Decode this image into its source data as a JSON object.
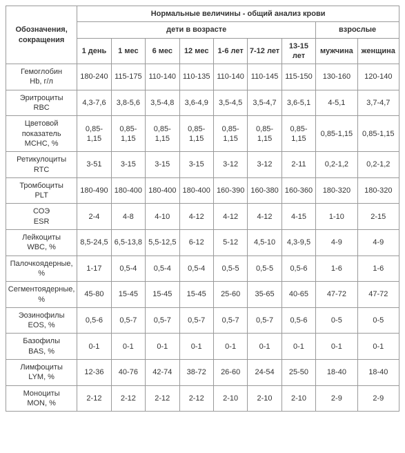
{
  "header": {
    "rowLabelHeader": "Обозначения, сокращения",
    "main": "Нормальные величины - общий анализ крови",
    "children": "дети в возрасте",
    "adults": "взрослые",
    "childCols": [
      "1 день",
      "1 мес",
      "6 мес",
      "12 мес",
      "1-6 лет",
      "7-12 лет",
      "13-15 лет"
    ],
    "adultCols": [
      "мужчина",
      "женщина"
    ]
  },
  "rows": [
    {
      "label": "Гемоглобин<br>Hb, г/л",
      "v": [
        "180-240",
        "115-175",
        "110-140",
        "110-135",
        "110-140",
        "110-145",
        "115-150",
        "130-160",
        "120-140"
      ]
    },
    {
      "label": "Эритроциты<br>RBC",
      "v": [
        "4,3-7,6",
        "3,8-5,6",
        "3,5-4,8",
        "3,6-4,9",
        "3,5-4,5",
        "3,5-4,7",
        "3,6-5,1",
        "4-5,1",
        "3,7-4,7"
      ]
    },
    {
      "label": "Цветовой показатель<br>MCHC, %",
      "v": [
        "0,85-1,15",
        "0,85-1,15",
        "0,85-1,15",
        "0,85-1,15",
        "0,85-1,15",
        "0,85-1,15",
        "0,85-1,15",
        "0,85-1,15",
        "0,85-1,15"
      ]
    },
    {
      "label": "Ретикулоциты<br>RTC",
      "v": [
        "3-51",
        "3-15",
        "3-15",
        "3-15",
        "3-12",
        "3-12",
        "2-11",
        "0,2-1,2",
        "0,2-1,2"
      ]
    },
    {
      "label": "Тромбоциты<br>PLT",
      "v": [
        "180-490",
        "180-400",
        "180-400",
        "180-400",
        "160-390",
        "160-380",
        "160-360",
        "180-320",
        "180-320"
      ]
    },
    {
      "label": "СОЭ<br>ESR",
      "v": [
        "2-4",
        "4-8",
        "4-10",
        "4-12",
        "4-12",
        "4-12",
        "4-15",
        "1-10",
        "2-15"
      ]
    },
    {
      "label": "Лейкоциты<br>WBC, %",
      "v": [
        "8,5-24,5",
        "6,5-13,8",
        "5,5-12,5",
        "6-12",
        "5-12",
        "4,5-10",
        "4,3-9,5",
        "4-9",
        "4-9"
      ]
    },
    {
      "label": "Палочкоядерные, %",
      "v": [
        "1-17",
        "0,5-4",
        "0,5-4",
        "0,5-4",
        "0,5-5",
        "0,5-5",
        "0,5-6",
        "1-6",
        "1-6"
      ]
    },
    {
      "label": "Сегментоядерные, %",
      "v": [
        "45-80",
        "15-45",
        "15-45",
        "15-45",
        "25-60",
        "35-65",
        "40-65",
        "47-72",
        "47-72"
      ]
    },
    {
      "label": "Эозинофилы<br>EOS, %",
      "v": [
        "0,5-6",
        "0,5-7",
        "0,5-7",
        "0,5-7",
        "0,5-7",
        "0,5-7",
        "0,5-6",
        "0-5",
        "0-5"
      ]
    },
    {
      "label": "Базофилы<br>BAS, %",
      "v": [
        "0-1",
        "0-1",
        "0-1",
        "0-1",
        "0-1",
        "0-1",
        "0-1",
        "0-1",
        "0-1"
      ]
    },
    {
      "label": "Лимфоциты<br>LYM, %",
      "v": [
        "12-36",
        "40-76",
        "42-74",
        "38-72",
        "26-60",
        "24-54",
        "25-50",
        "18-40",
        "18-40"
      ]
    },
    {
      "label": "Моноциты<br>MON, %",
      "v": [
        "2-12",
        "2-12",
        "2-12",
        "2-12",
        "2-10",
        "2-10",
        "2-10",
        "2-9",
        "2-9"
      ]
    }
  ]
}
